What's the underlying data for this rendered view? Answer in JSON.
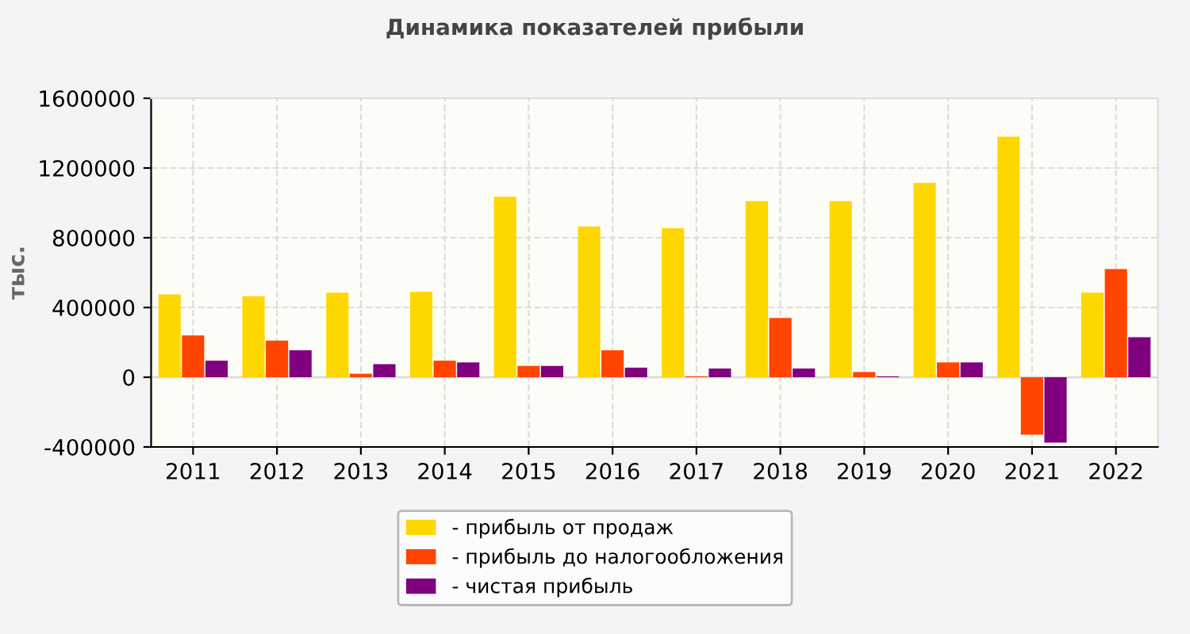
{
  "chart_data": {
    "type": "bar",
    "title": "Динамика показателей прибыли",
    "ylabel": "тыс.",
    "categories": [
      "2011",
      "2012",
      "2013",
      "2014",
      "2015",
      "2016",
      "2017",
      "2018",
      "2019",
      "2020",
      "2021",
      "2022"
    ],
    "series": [
      {
        "name": "- прибыль от продаж",
        "color": "#ffd700",
        "values": [
          475000,
          465000,
          485000,
          490000,
          1035000,
          865000,
          855000,
          1010000,
          1010000,
          1115000,
          1380000,
          485000
        ]
      },
      {
        "name": "- прибыль до налогообложения",
        "color": "#ff4500",
        "values": [
          240000,
          210000,
          20000,
          95000,
          65000,
          155000,
          5000,
          340000,
          30000,
          85000,
          -330000,
          620000
        ]
      },
      {
        "name": "- чистая прибыль",
        "color": "#800080",
        "values": [
          95000,
          155000,
          75000,
          85000,
          65000,
          55000,
          50000,
          50000,
          5000,
          85000,
          -375000,
          230000
        ]
      }
    ],
    "ylim": [
      -400000,
      1600000
    ],
    "yticks": [
      -400000,
      0,
      400000,
      800000,
      1200000,
      1600000
    ],
    "grid": true,
    "legend": "bottom"
  }
}
